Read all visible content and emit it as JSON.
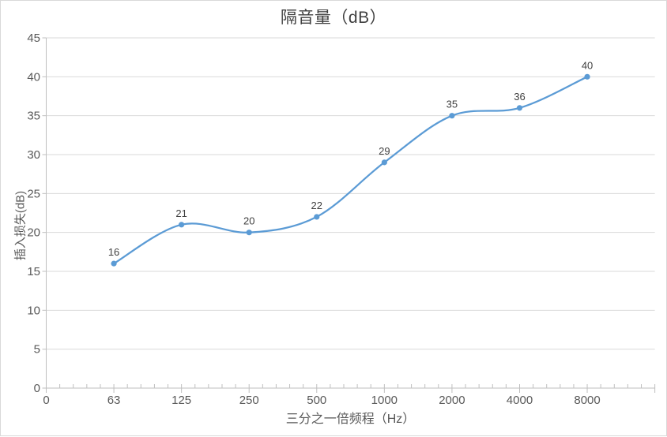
{
  "chart_data": {
    "type": "line",
    "smooth": true,
    "title": "隔音量（dB）",
    "xlabel": "三分之一倍频程（Hz）",
    "ylabel": "插入损失(dB)",
    "categories": [
      "63",
      "125",
      "250",
      "500",
      "1000",
      "2000",
      "4000",
      "8000"
    ],
    "values": [
      16,
      21,
      20,
      22,
      29,
      35,
      36,
      40
    ],
    "data_labels": [
      "16",
      "21",
      "20",
      "22",
      "29",
      "35",
      "36",
      "40"
    ],
    "x_axis_tick_labels": [
      "0",
      "63",
      "125",
      "250",
      "500",
      "1000",
      "2000",
      "4000",
      "8000"
    ],
    "y_axis_tick_labels": [
      "0",
      "5",
      "10",
      "15",
      "20",
      "25",
      "30",
      "35",
      "40",
      "45"
    ],
    "ylim": [
      0,
      45
    ],
    "y_tick_step": 5,
    "grid": true,
    "legend": "none",
    "colors": {
      "series": "#5b9bd5",
      "gridline": "#d9d9d9",
      "axis_line": "#bfbfbf",
      "tick_text": "#595959",
      "data_label_text": "#404040",
      "chart_border": "#d9d9d9"
    }
  }
}
